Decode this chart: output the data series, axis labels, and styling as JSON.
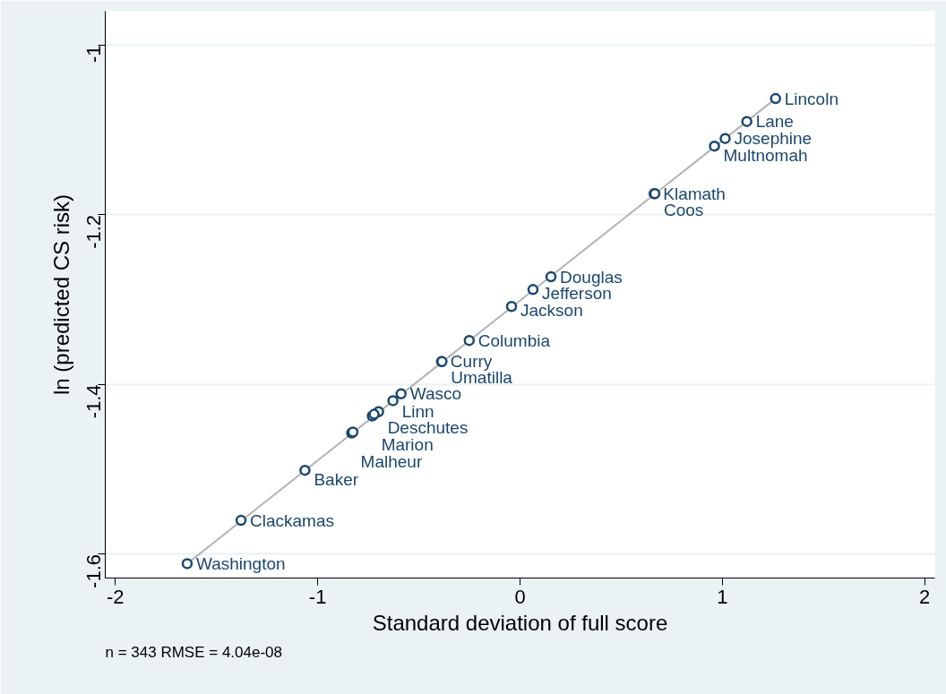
{
  "chart_data": {
    "type": "scatter",
    "xlabel": "Standard deviation of full score",
    "ylabel": "ln (predicted CS risk)",
    "xlim": [
      -2.05,
      2.05
    ],
    "ylim": [
      -1.628,
      -0.96
    ],
    "xticks": [
      -2,
      -1,
      0,
      1,
      2
    ],
    "yticks": [
      -1.6,
      -1.4,
      -1.2,
      -1
    ],
    "grid": "y",
    "series": [
      {
        "marker": "circle",
        "color": "#1a476f",
        "x": [
          1.263,
          1.121,
          1.014,
          0.961,
          0.663,
          0.666,
          0.153,
          0.064,
          -0.042,
          -0.251,
          -0.388,
          -0.386,
          -0.588,
          -0.628,
          -0.699,
          -0.73,
          -0.721,
          -0.832,
          -0.826,
          -1.063,
          -1.379,
          -1.645
        ],
        "values": [
          -1.063,
          -1.09,
          -1.11,
          -1.119,
          -1.175,
          -1.175,
          -1.273,
          -1.288,
          -1.308,
          -1.348,
          -1.373,
          -1.373,
          -1.411,
          -1.419,
          -1.432,
          -1.437,
          -1.435,
          -1.457,
          -1.456,
          -1.501,
          -1.56,
          -1.611
        ],
        "value_labels": [
          "Lincoln",
          "Lane",
          "Josephine",
          "Multnomah",
          "Klamath",
          "Coos",
          "Douglas",
          "Jefferson",
          "Jackson",
          "Columbia",
          "Curry",
          "Umatilla",
          "Wasco",
          "Linn",
          "Deschutes",
          "Marion",
          null,
          "Malheur",
          null,
          "Baker",
          "Clackamas",
          "Washington"
        ]
      },
      {
        "type": "line",
        "color": "#b4b4b4",
        "x": [
          -1.645,
          1.263
        ],
        "values": [
          -1.611,
          -1.063
        ]
      }
    ],
    "annotations": [
      "n = 343    RMSE =  4.04e-08"
    ]
  }
}
